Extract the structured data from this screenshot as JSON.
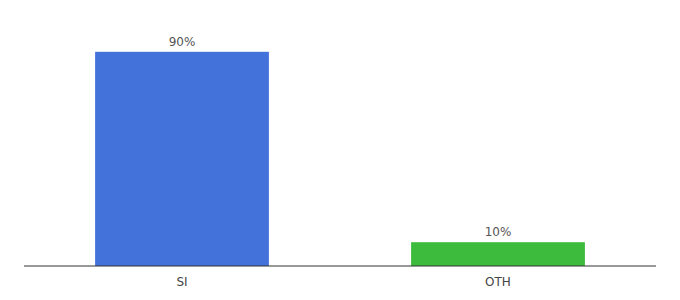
{
  "chart_data": {
    "type": "bar",
    "categories": [
      "SI",
      "OTH"
    ],
    "values": [
      90,
      10
    ],
    "value_labels": [
      "90%",
      "10%"
    ],
    "colors": [
      "#4472db",
      "#3dbb3d"
    ],
    "ylim": [
      0,
      100
    ],
    "data_labels": true,
    "tick_labels": "x",
    "grid": false
  }
}
